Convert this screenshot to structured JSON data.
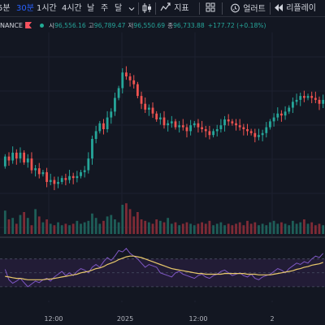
{
  "toolbar": {
    "items": [
      {
        "label": "5분",
        "active": false
      },
      {
        "label": "30분",
        "active": true
      },
      {
        "label": "1시간",
        "active": false
      },
      {
        "label": "4시간",
        "active": false
      },
      {
        "label": "날",
        "active": false
      },
      {
        "label": "주",
        "active": false
      },
      {
        "label": "달",
        "active": false
      }
    ],
    "indicators_label": "지표",
    "alert_label": "얼러트",
    "replay_label": "리플레이",
    "icons": [
      "chevron-down-icon",
      "candle-icon",
      "indicators-icon",
      "layout-icon",
      "alarm-icon",
      "replay-icon"
    ]
  },
  "legend": {
    "exchange": "NANCE",
    "open_label": "시",
    "open": "96,556.16",
    "high_label": "고",
    "high": "96,789.47",
    "low_label": "저",
    "low": "96,550.69",
    "close_label": "종",
    "close": "96,733.88",
    "change": "+177.72 (+0.18%)"
  },
  "time_axis": {
    "labels": [
      "12:00",
      "2025",
      "12:00",
      "2"
    ]
  },
  "colors": {
    "background": "#131722",
    "up": "#26a69a",
    "down": "#ef5350",
    "volume_up": "#1e5e58",
    "volume_down": "#7f2b36",
    "rsi_line": "#7e57c2",
    "rsi_ma": "#e8c86b",
    "rsi_band": "#221c36"
  },
  "chart_data": [
    {
      "type": "candlestick",
      "x_labels": [
        "12:00",
        "2025",
        "12:00",
        "2"
      ],
      "open": [
        96700,
        96950,
        96850,
        97050,
        96900,
        97050,
        96800,
        96900,
        96600,
        96650,
        96500,
        96550,
        96300,
        96350,
        96250,
        96300,
        96400,
        96350,
        96450,
        96400,
        96450,
        96550,
        96600,
        96900,
        97400,
        97600,
        97800,
        97650,
        97950,
        98100,
        98450,
        98700,
        99100,
        99000,
        98900,
        98800,
        98500,
        98300,
        98150,
        98200,
        98050,
        97900,
        97950,
        97750,
        97800,
        97850,
        97700,
        97750,
        97700,
        97600,
        97750,
        97800,
        97700,
        97650,
        97600,
        97500,
        97600,
        97650,
        97750,
        97900,
        97850,
        97800,
        97750,
        97700,
        97650,
        97600,
        97550,
        97450,
        97500,
        97550,
        97700,
        97850,
        97950,
        98050,
        98000,
        98100,
        98200,
        98350,
        98400,
        98500,
        98450,
        98500,
        98450,
        98400,
        98300
      ],
      "close": [
        96950,
        96850,
        97050,
        96900,
        97050,
        96800,
        96900,
        96600,
        96650,
        96500,
        96550,
        96300,
        96350,
        96250,
        96300,
        96400,
        96350,
        96450,
        96400,
        96450,
        96550,
        96600,
        96900,
        97400,
        97600,
        97800,
        97650,
        97950,
        98100,
        98450,
        98700,
        99100,
        99000,
        98900,
        98800,
        98500,
        98300,
        98150,
        98200,
        98050,
        97900,
        97950,
        97750,
        97800,
        97850,
        97700,
        97750,
        97700,
        97600,
        97750,
        97800,
        97700,
        97650,
        97600,
        97500,
        97600,
        97650,
        97750,
        97900,
        97850,
        97800,
        97750,
        97700,
        97650,
        97600,
        97550,
        97450,
        97500,
        97550,
        97700,
        97850,
        97950,
        98050,
        98000,
        98100,
        98200,
        98350,
        98400,
        98500,
        98450,
        98500,
        98450,
        98400,
        98300,
        98400
      ]
    },
    {
      "type": "bar",
      "name": "volume",
      "values": [
        32,
        20,
        22,
        14,
        26,
        30,
        22,
        12,
        34,
        24,
        16,
        20,
        14,
        12,
        16,
        12,
        14,
        12,
        14,
        18,
        14,
        16,
        18,
        28,
        22,
        14,
        18,
        24,
        26,
        20,
        16,
        40,
        42,
        34,
        24,
        30,
        20,
        18,
        16,
        14,
        20,
        18,
        16,
        22,
        14,
        16,
        12,
        14,
        16,
        14,
        12,
        14,
        16,
        14,
        18,
        12,
        14,
        16,
        12,
        14,
        12,
        14,
        16,
        12,
        18,
        14,
        16,
        12,
        14,
        12,
        16,
        18,
        14,
        16,
        14,
        12,
        18,
        14,
        16,
        20,
        14,
        16,
        12,
        14,
        12
      ]
    },
    {
      "type": "line",
      "name": "rsi",
      "ylim": [
        0,
        100
      ],
      "values": [
        55,
        40,
        35,
        38,
        42,
        36,
        30,
        34,
        38,
        36,
        40,
        42,
        38,
        44,
        48,
        52,
        46,
        50,
        46,
        52,
        56,
        54,
        50,
        58,
        62,
        58,
        66,
        72,
        68,
        74,
        82,
        80,
        85,
        78,
        74,
        70,
        64,
        58,
        62,
        60,
        58,
        50,
        48,
        46,
        44,
        50,
        52,
        48,
        46,
        44,
        42,
        46,
        48,
        44,
        42,
        46,
        48,
        52,
        54,
        50,
        46,
        48,
        50,
        46,
        44,
        48,
        42,
        40,
        44,
        46,
        48,
        52,
        56,
        54,
        50,
        56,
        60,
        64,
        62,
        66,
        64,
        70,
        74,
        72,
        78
      ],
      "ma": [
        45,
        44,
        43,
        42,
        42,
        41,
        40,
        40,
        40,
        40,
        40,
        41,
        41,
        42,
        43,
        44,
        45,
        46,
        47,
        48,
        50,
        51,
        52,
        54,
        56,
        57,
        59,
        62,
        64,
        66,
        69,
        71,
        73,
        74,
        74,
        73,
        72,
        70,
        68,
        66,
        64,
        62,
        60,
        58,
        56,
        55,
        54,
        53,
        52,
        51,
        50,
        49,
        49,
        48,
        48,
        48,
        48,
        48,
        49,
        49,
        49,
        49,
        49,
        49,
        48,
        48,
        48,
        47,
        47,
        47,
        47,
        48,
        49,
        50,
        51,
        52,
        53,
        55,
        56,
        58,
        59,
        61,
        62,
        63,
        65
      ]
    }
  ]
}
